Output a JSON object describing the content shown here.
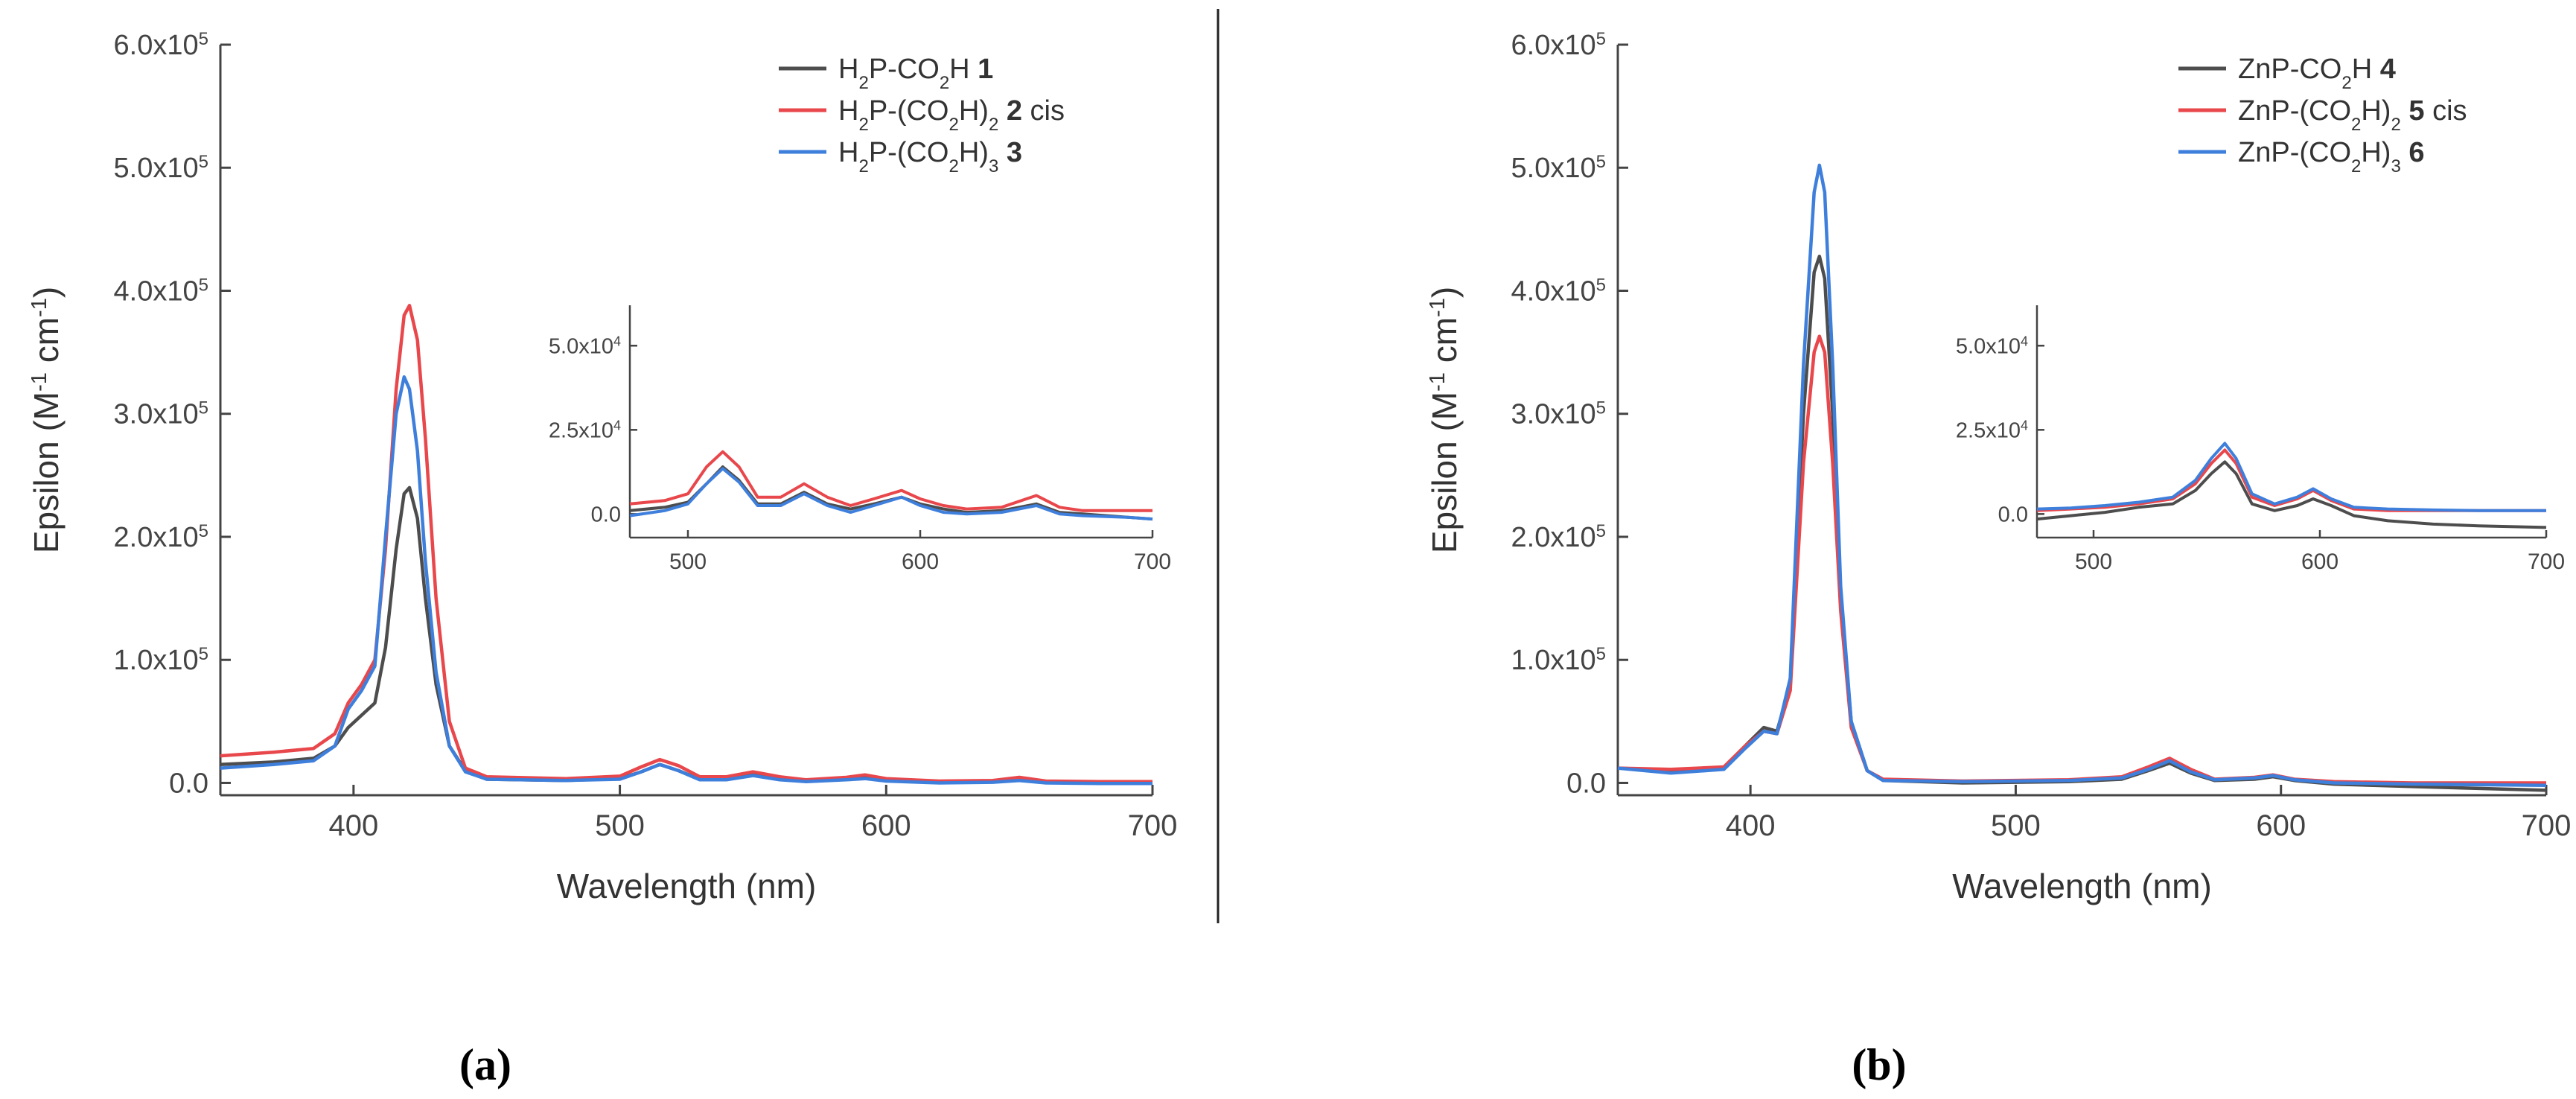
{
  "chart_data": [
    {
      "type": "line",
      "panel_label": "(a)",
      "xlabel": "Wavelength (nm)",
      "ylabel_parts": [
        "Epsilon (M",
        "-1",
        " cm",
        "-1",
        ")"
      ],
      "xlim": [
        350,
        700
      ],
      "ylim": [
        -10000,
        600000
      ],
      "xticks": [
        400,
        500,
        600,
        700
      ],
      "xtick_labels": [
        "400",
        "500",
        "600",
        "700"
      ],
      "yticks": [
        0,
        100000,
        200000,
        300000,
        400000,
        500000,
        600000
      ],
      "ytick_labels": [
        [
          "0.0",
          ""
        ],
        [
          "1.0x10",
          "5"
        ],
        [
          "2.0x10",
          "5"
        ],
        [
          "3.0x10",
          "5"
        ],
        [
          "4.0x10",
          "5"
        ],
        [
          "5.0x10",
          "5"
        ],
        [
          "6.0x10",
          "5"
        ]
      ],
      "grid": false,
      "legend_position": "top-right",
      "series": [
        {
          "name_parts": [
            [
              "H",
              ""
            ],
            [
              "2",
              "sub"
            ],
            [
              "P-CO",
              ""
            ],
            [
              "2",
              "sub"
            ],
            [
              "H ",
              ""
            ],
            [
              "1",
              "bold"
            ]
          ],
          "color": "#4d4d4d",
          "x": [
            350,
            370,
            385,
            393,
            398,
            403,
            408,
            412,
            416,
            419,
            421,
            424,
            427,
            431,
            436,
            442,
            450,
            480,
            500,
            508,
            515,
            522,
            530,
            540,
            550,
            560,
            570,
            585,
            592,
            600,
            620,
            640,
            650,
            660,
            680,
            700
          ],
          "y": [
            15000,
            17000,
            20000,
            30000,
            45000,
            55000,
            65000,
            110000,
            190000,
            235000,
            240000,
            215000,
            150000,
            80000,
            30000,
            10000,
            3000,
            2000,
            3500,
            9000,
            15000,
            10000,
            3000,
            3000,
            6500,
            3000,
            1500,
            3000,
            4000,
            2000,
            500,
            1000,
            2500,
            500,
            0,
            0
          ]
        },
        {
          "name_parts": [
            [
              "H",
              ""
            ],
            [
              "2",
              "sub"
            ],
            [
              "P-(CO",
              ""
            ],
            [
              "2",
              "sub"
            ],
            [
              "H)",
              ""
            ],
            [
              "2",
              "sub"
            ],
            [
              " ",
              ""
            ],
            [
              "2",
              "bold"
            ],
            [
              " cis",
              ""
            ]
          ],
          "color": "#e8474b",
          "x": [
            350,
            370,
            385,
            393,
            398,
            403,
            408,
            412,
            416,
            419,
            421,
            424,
            427,
            431,
            436,
            442,
            450,
            480,
            500,
            508,
            515,
            522,
            530,
            540,
            550,
            560,
            570,
            585,
            592,
            600,
            620,
            640,
            650,
            660,
            680,
            700
          ],
          "y": [
            22000,
            25000,
            28000,
            40000,
            65000,
            80000,
            100000,
            190000,
            320000,
            380000,
            388000,
            360000,
            280000,
            150000,
            50000,
            12000,
            5000,
            3500,
            5500,
            13000,
            19000,
            14000,
            5000,
            5000,
            9000,
            5000,
            2500,
            4500,
            6500,
            3500,
            1500,
            2000,
            4500,
            1500,
            1000,
            1000
          ]
        },
        {
          "name_parts": [
            [
              "H",
              ""
            ],
            [
              "2",
              "sub"
            ],
            [
              "P-(CO",
              ""
            ],
            [
              "2",
              "sub"
            ],
            [
              "H)",
              ""
            ],
            [
              "3",
              "sub"
            ],
            [
              " ",
              ""
            ],
            [
              "3",
              "bold"
            ]
          ],
          "color": "#3f7fdc",
          "x": [
            350,
            370,
            385,
            393,
            398,
            403,
            408,
            412,
            416,
            419,
            421,
            424,
            427,
            431,
            436,
            442,
            450,
            480,
            500,
            508,
            515,
            522,
            530,
            540,
            550,
            560,
            570,
            585,
            592,
            600,
            620,
            640,
            650,
            660,
            680,
            700
          ],
          "y": [
            12000,
            15000,
            18000,
            30000,
            60000,
            75000,
            95000,
            200000,
            300000,
            330000,
            320000,
            270000,
            180000,
            90000,
            30000,
            9000,
            3000,
            2000,
            3000,
            9000,
            15000,
            10000,
            2500,
            2500,
            6000,
            2500,
            1000,
            2500,
            3500,
            1500,
            0,
            500,
            2000,
            0,
            -500,
            -500
          ]
        }
      ],
      "inset": {
        "xlim": [
          475,
          700
        ],
        "ylim": [
          -7000,
          62000
        ],
        "xticks": [
          500,
          600,
          700
        ],
        "xtick_labels": [
          "500",
          "600",
          "700"
        ],
        "yticks": [
          0,
          25000,
          50000
        ],
        "ytick_labels": [
          [
            "0.0",
            ""
          ],
          [
            "2.5x10",
            "4"
          ],
          [
            "5.0x10",
            "4"
          ]
        ],
        "x": [
          475,
          490,
          500,
          508,
          515,
          522,
          530,
          540,
          550,
          560,
          570,
          580,
          592,
          600,
          610,
          620,
          635,
          650,
          660,
          670,
          690,
          700
        ],
        "y_series": [
          [
            1000,
            2000,
            3500,
            9000,
            14000,
            10000,
            3000,
            3000,
            6500,
            3000,
            1500,
            3000,
            5000,
            3000,
            1500,
            500,
            1000,
            3000,
            500,
            0,
            -1000,
            -1500
          ],
          [
            3000,
            4000,
            6000,
            14000,
            18500,
            14000,
            5000,
            5000,
            9000,
            5000,
            2500,
            4500,
            7000,
            4500,
            2500,
            1500,
            2000,
            5500,
            2000,
            1000,
            1000,
            1000
          ],
          [
            -500,
            1000,
            3000,
            9000,
            13500,
            9500,
            2500,
            2500,
            6000,
            2500,
            500,
            2500,
            5000,
            2500,
            500,
            0,
            500,
            2500,
            0,
            -500,
            -1000,
            -1500
          ]
        ]
      }
    },
    {
      "type": "line",
      "panel_label": "(b)",
      "xlabel": "Wavelength (nm)",
      "ylabel_parts": [
        "Epsilon (M",
        "-1",
        " cm",
        "-1",
        ")"
      ],
      "xlim": [
        350,
        700
      ],
      "ylim": [
        -10000,
        600000
      ],
      "xticks": [
        400,
        500,
        600,
        700
      ],
      "xtick_labels": [
        "400",
        "500",
        "600",
        "700"
      ],
      "yticks": [
        0,
        100000,
        200000,
        300000,
        400000,
        500000,
        600000
      ],
      "ytick_labels": [
        [
          "0.0",
          ""
        ],
        [
          "1.0x10",
          "5"
        ],
        [
          "2.0x10",
          "5"
        ],
        [
          "3.0x10",
          "5"
        ],
        [
          "4.0x10",
          "5"
        ],
        [
          "5.0x10",
          "5"
        ],
        [
          "6.0x10",
          "5"
        ]
      ],
      "grid": false,
      "legend_position": "top-right",
      "series": [
        {
          "name_parts": [
            [
              "ZnP-CO",
              ""
            ],
            [
              "2",
              "sub"
            ],
            [
              "H ",
              ""
            ],
            [
              "4",
              "bold"
            ]
          ],
          "color": "#4d4d4d",
          "x": [
            350,
            370,
            390,
            398,
            405,
            410,
            415,
            420,
            424,
            426,
            428,
            431,
            434,
            438,
            444,
            450,
            480,
            520,
            540,
            550,
            558,
            566,
            575,
            590,
            597,
            605,
            620,
            650,
            700
          ],
          "y": [
            12000,
            10000,
            12000,
            30000,
            45000,
            42000,
            80000,
            300000,
            415000,
            428000,
            410000,
            300000,
            150000,
            50000,
            10000,
            2000,
            0,
            1000,
            3000,
            10000,
            16000,
            8000,
            2000,
            3000,
            5000,
            2000,
            -1000,
            -3000,
            -6000
          ]
        },
        {
          "name_parts": [
            [
              "ZnP-(CO",
              ""
            ],
            [
              "2",
              "sub"
            ],
            [
              "H)",
              ""
            ],
            [
              "2",
              "sub"
            ],
            [
              " ",
              ""
            ],
            [
              "5",
              "bold"
            ],
            [
              " cis",
              ""
            ]
          ],
          "color": "#e8474b",
          "x": [
            350,
            370,
            390,
            398,
            405,
            410,
            415,
            420,
            424,
            426,
            428,
            431,
            434,
            438,
            444,
            450,
            480,
            520,
            540,
            550,
            558,
            566,
            575,
            590,
            597,
            605,
            620,
            650,
            700
          ],
          "y": [
            12000,
            11000,
            13000,
            30000,
            42000,
            40000,
            75000,
            260000,
            350000,
            363000,
            350000,
            260000,
            140000,
            45000,
            10000,
            3000,
            1500,
            2500,
            5000,
            13000,
            20000,
            11000,
            3000,
            4500,
            6500,
            3000,
            1000,
            0,
            0
          ]
        },
        {
          "name_parts": [
            [
              "ZnP-(CO",
              ""
            ],
            [
              "2",
              "sub"
            ],
            [
              "H)",
              ""
            ],
            [
              "3",
              "sub"
            ],
            [
              " ",
              ""
            ],
            [
              "6",
              "bold"
            ]
          ],
          "color": "#3f7fdc",
          "x": [
            350,
            370,
            390,
            398,
            405,
            410,
            415,
            420,
            424,
            426,
            428,
            431,
            434,
            438,
            444,
            450,
            480,
            520,
            540,
            550,
            558,
            566,
            575,
            590,
            597,
            605,
            620,
            650,
            700
          ],
          "y": [
            12000,
            8000,
            11000,
            28000,
            42000,
            40000,
            85000,
            340000,
            480000,
            502000,
            480000,
            340000,
            160000,
            50000,
            10000,
            2000,
            1000,
            2000,
            4000,
            11000,
            18000,
            9000,
            2500,
            4000,
            6000,
            2500,
            0,
            -1000,
            -2000
          ]
        }
      ],
      "inset": {
        "xlim": [
          475,
          700
        ],
        "ylim": [
          -7000,
          62000
        ],
        "xticks": [
          500,
          600,
          700
        ],
        "xtick_labels": [
          "500",
          "600",
          "700"
        ],
        "yticks": [
          0,
          25000,
          50000
        ],
        "ytick_labels": [
          [
            "0.0",
            ""
          ],
          [
            "2.5x10",
            "4"
          ],
          [
            "5.0x10",
            "4"
          ]
        ],
        "x": [
          475,
          490,
          505,
          520,
          535,
          545,
          552,
          558,
          563,
          570,
          580,
          590,
          597,
          605,
          615,
          630,
          650,
          670,
          700
        ],
        "y_series": [
          [
            -1500,
            -500,
            500,
            2000,
            3000,
            7000,
            12000,
            15500,
            12000,
            3000,
            1000,
            2500,
            4500,
            2500,
            -500,
            -2000,
            -3000,
            -3500,
            -4000
          ],
          [
            1000,
            1500,
            2000,
            3000,
            4500,
            9000,
            15000,
            19000,
            15000,
            5000,
            2500,
            4500,
            7000,
            4000,
            1500,
            1000,
            1000,
            1000,
            1000
          ],
          [
            1500,
            1800,
            2500,
            3500,
            5000,
            10000,
            16500,
            21000,
            16500,
            6000,
            3000,
            5000,
            7500,
            4500,
            2000,
            1500,
            1200,
            1000,
            1000
          ]
        ]
      }
    }
  ]
}
